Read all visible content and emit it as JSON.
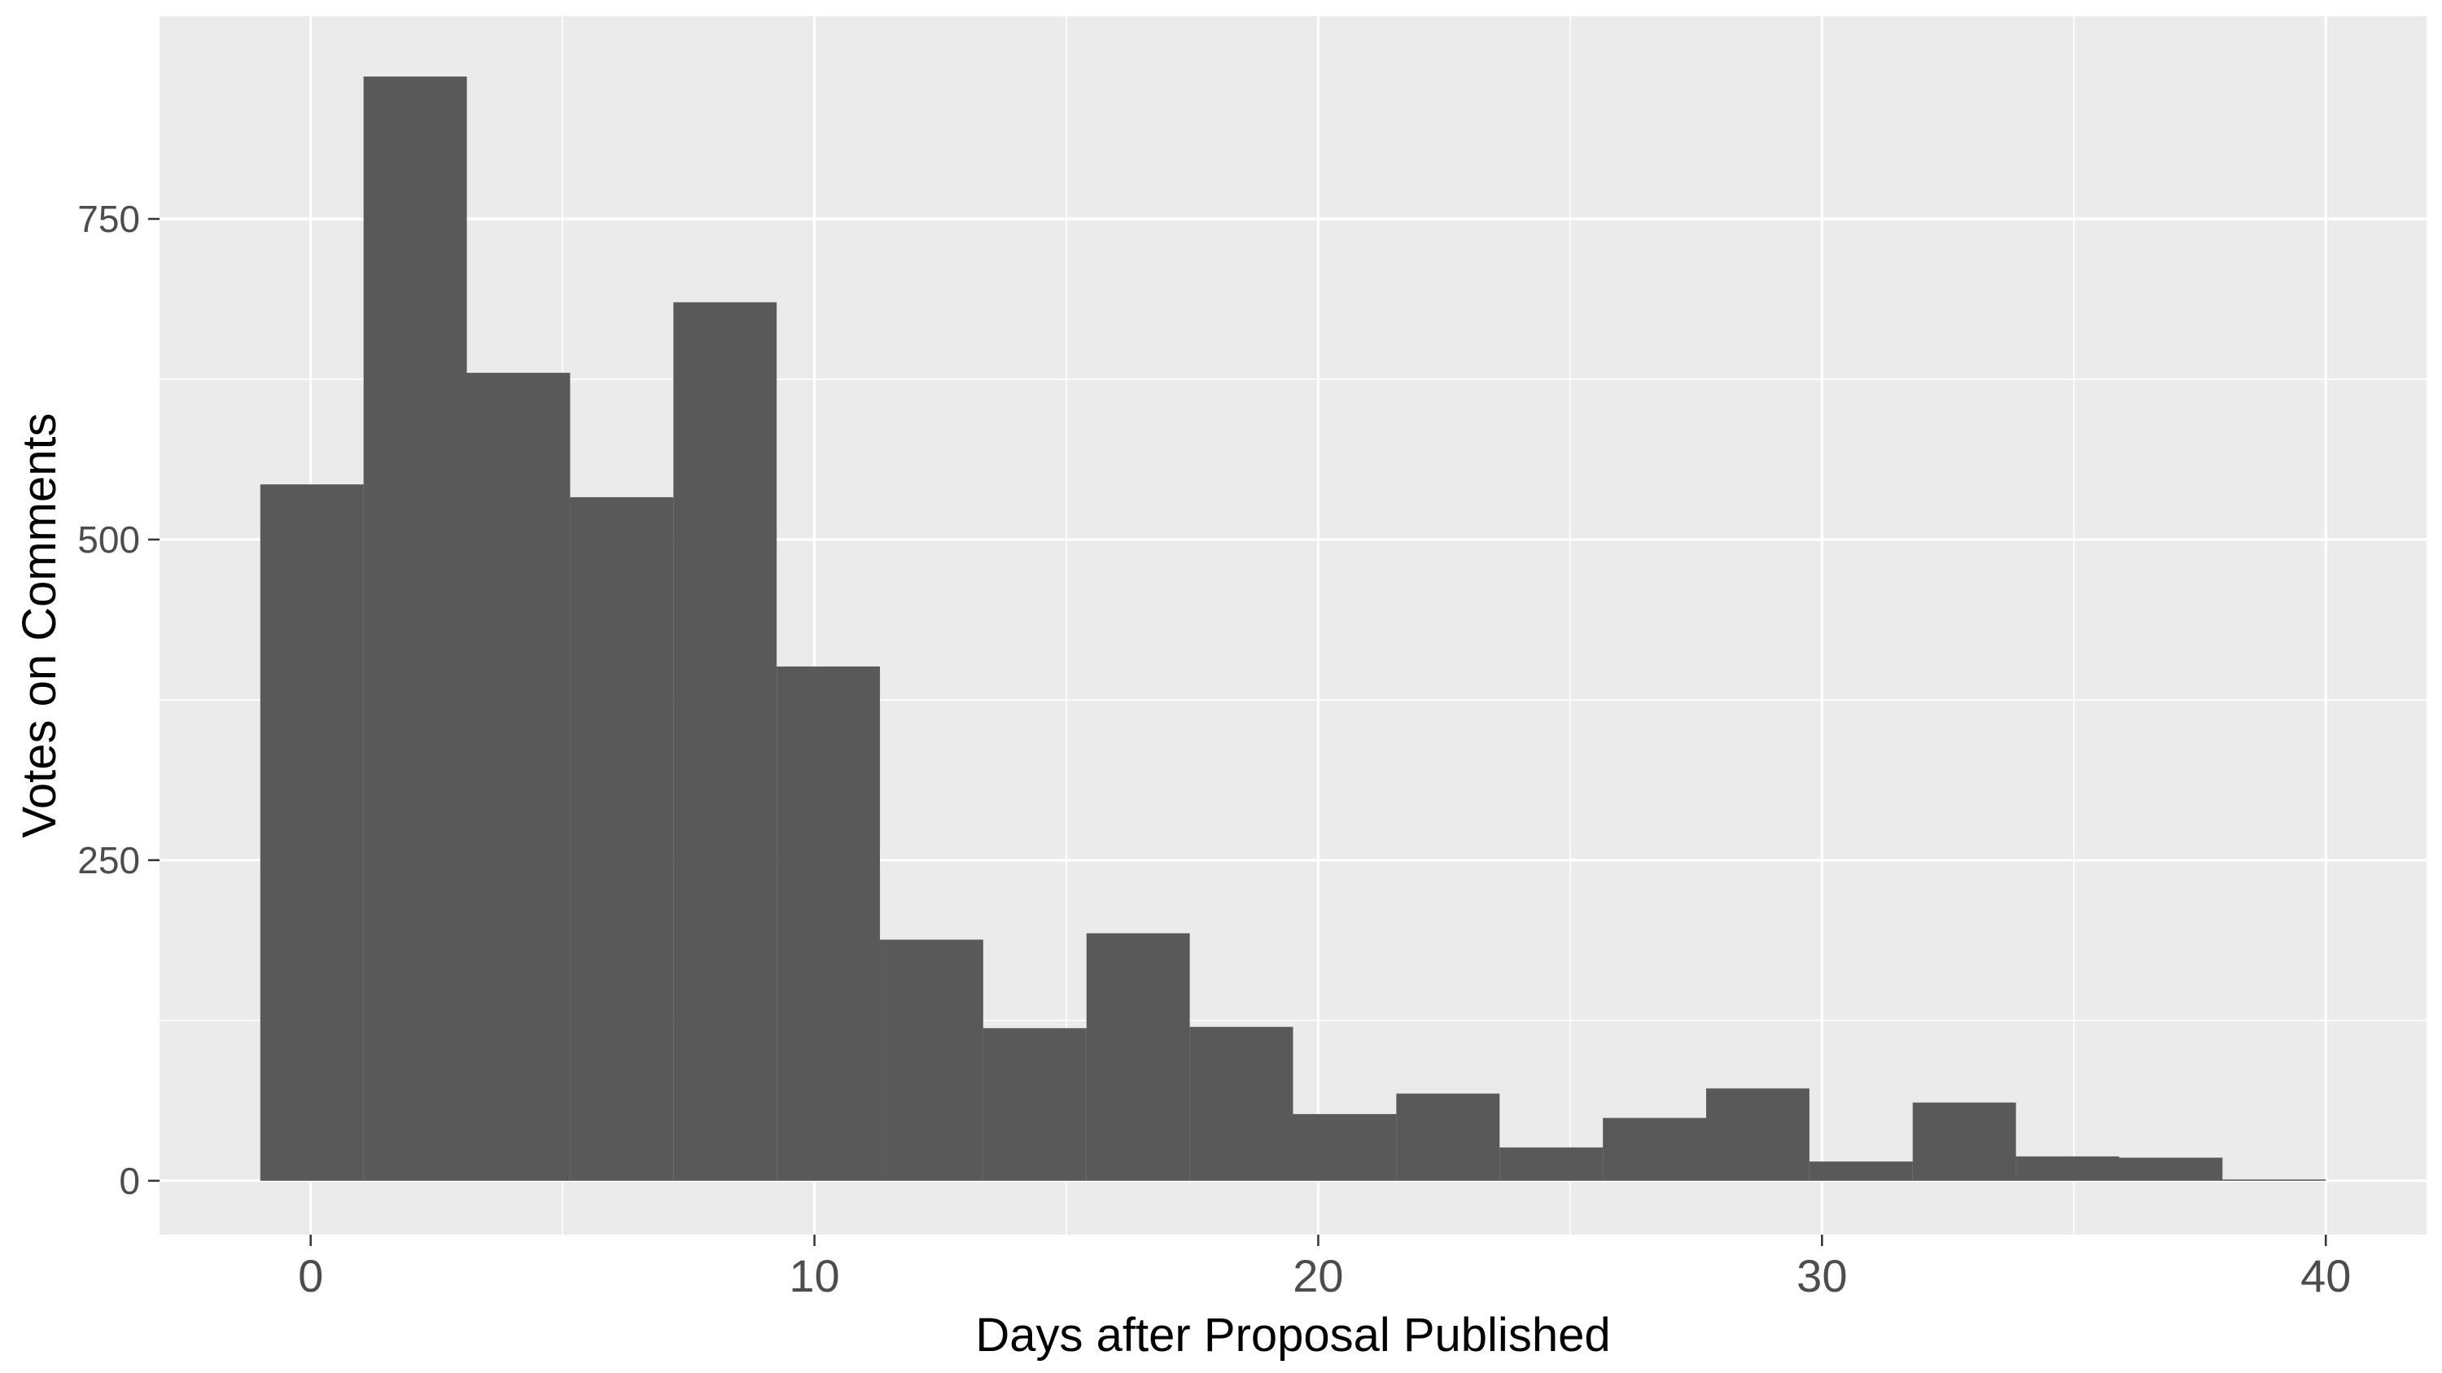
{
  "chart_data": {
    "type": "bar",
    "subtype": "histogram",
    "xlabel": "Days after Proposal Published",
    "ylabel": "Votes on Comments",
    "xlim": [
      -3,
      42
    ],
    "ylim": [
      -42,
      908
    ],
    "x_ticks": [
      0,
      10,
      20,
      30,
      40
    ],
    "y_ticks": [
      0,
      250,
      500,
      750
    ],
    "x_minor_ticks": [
      5,
      15,
      25,
      35
    ],
    "y_minor_ticks": [
      125,
      375,
      625
    ],
    "grid": true,
    "legend": "none",
    "bin_width": 2.053,
    "bins": [
      {
        "x0": -1.0,
        "x1": 1.05,
        "value": 543
      },
      {
        "x0": 1.05,
        "x1": 3.1,
        "value": 861
      },
      {
        "x0": 3.1,
        "x1": 5.15,
        "value": 630
      },
      {
        "x0": 5.15,
        "x1": 7.2,
        "value": 533
      },
      {
        "x0": 7.2,
        "x1": 9.25,
        "value": 685
      },
      {
        "x0": 9.25,
        "x1": 11.3,
        "value": 401
      },
      {
        "x0": 11.3,
        "x1": 13.35,
        "value": 188
      },
      {
        "x0": 13.35,
        "x1": 15.4,
        "value": 119
      },
      {
        "x0": 15.4,
        "x1": 17.45,
        "value": 193
      },
      {
        "x0": 17.45,
        "x1": 19.5,
        "value": 120
      },
      {
        "x0": 19.5,
        "x1": 21.55,
        "value": 52
      },
      {
        "x0": 21.55,
        "x1": 23.6,
        "value": 68
      },
      {
        "x0": 23.6,
        "x1": 25.65,
        "value": 26
      },
      {
        "x0": 25.65,
        "x1": 27.7,
        "value": 49
      },
      {
        "x0": 27.7,
        "x1": 29.75,
        "value": 72
      },
      {
        "x0": 29.75,
        "x1": 31.8,
        "value": 15
      },
      {
        "x0": 31.8,
        "x1": 33.85,
        "value": 61
      },
      {
        "x0": 33.85,
        "x1": 35.9,
        "value": 19
      },
      {
        "x0": 35.9,
        "x1": 37.95,
        "value": 18
      },
      {
        "x0": 37.95,
        "x1": 40.0,
        "value": 1
      }
    ],
    "colors": {
      "bar": "#595959",
      "panel": "#ebebeb",
      "grid": "#ffffff",
      "tick": "#333333"
    }
  }
}
